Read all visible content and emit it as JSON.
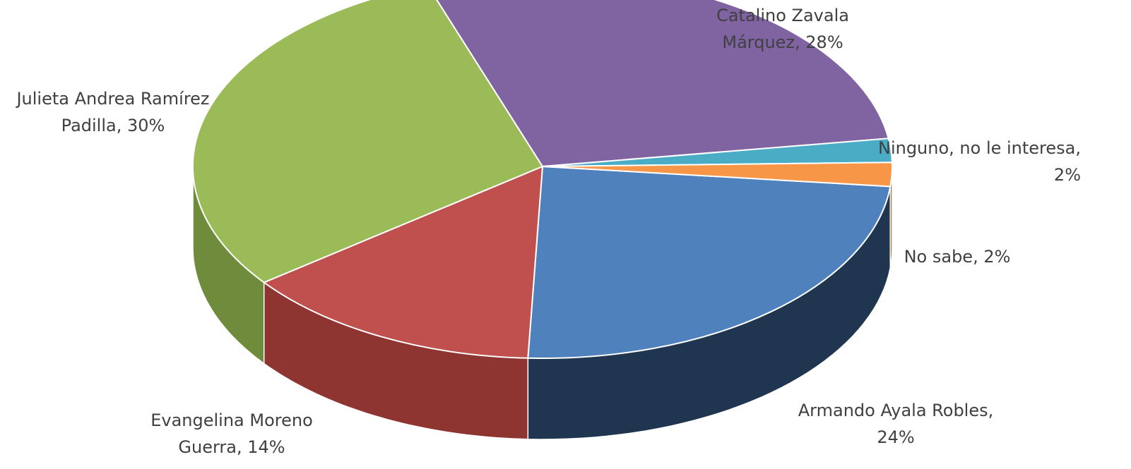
{
  "chart_data": {
    "type": "pie",
    "style": "3d",
    "title": "",
    "slices": [
      {
        "label": "Armando Ayala Robles",
        "value": 24,
        "display": "24%",
        "color": "#4F81BD",
        "side_color": "#1F3550"
      },
      {
        "label": "Evangelina Moreno Guerra",
        "value": 14,
        "display": "14%",
        "color": "#C0504D",
        "side_color": "#8E3532"
      },
      {
        "label": "Julieta Andrea Ramírez Padilla",
        "value": 30,
        "display": "30%",
        "color": "#9BBB59",
        "side_color": "#6F8B3C"
      },
      {
        "label": "Catalino Zavala Márquez",
        "value": 28,
        "display": "28%",
        "color": "#8064A2",
        "side_color": "#5A4675"
      },
      {
        "label": "Ninguno, no le interesa",
        "value": 2,
        "display": "2%",
        "color": "#4BACC6",
        "side_color": "#2F7E93"
      },
      {
        "label": "No sabe",
        "value": 2,
        "display": "2%",
        "color": "#F79646",
        "side_color": "#B86A2C"
      }
    ],
    "data_labels": [
      {
        "lines": [
          "Armando Ayala Robles,",
          "24%"
        ]
      },
      {
        "lines": [
          "Evangelina Moreno",
          "Guerra, 14%"
        ]
      },
      {
        "lines": [
          "Julieta Andrea Ramírez",
          "Padilla, 30%"
        ]
      },
      {
        "lines": [
          "Catalino Zavala",
          "Márquez, 28%"
        ]
      },
      {
        "lines": [
          "Ninguno, no le interesa,",
          "2%"
        ]
      },
      {
        "lines": [
          "No sabe, 2%"
        ]
      }
    ],
    "legend": "none"
  }
}
